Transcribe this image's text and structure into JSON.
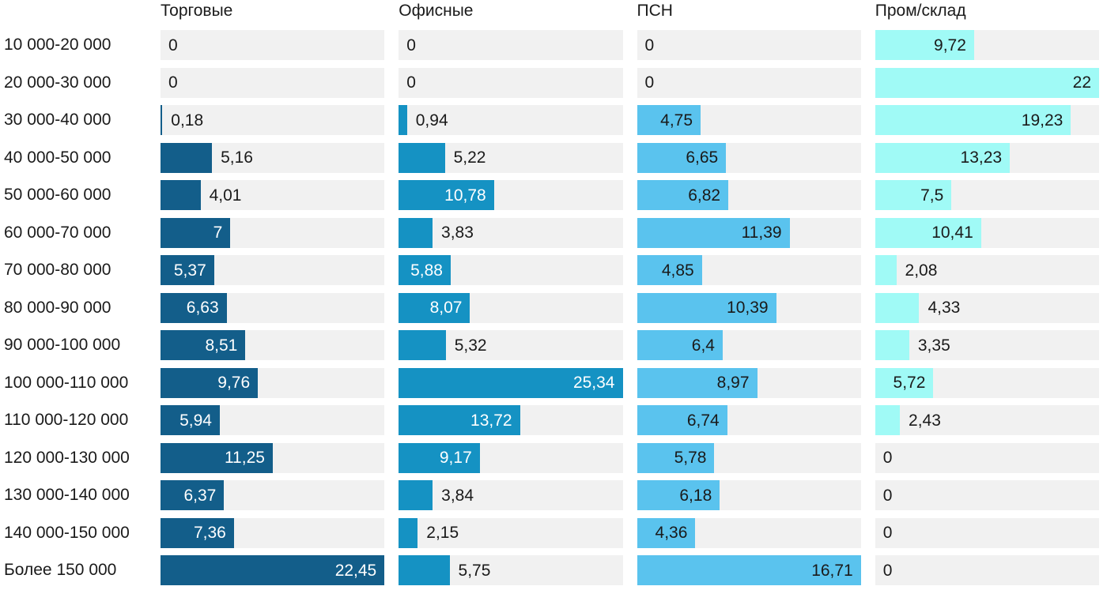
{
  "chart_data": {
    "type": "bar",
    "orientation": "horizontal",
    "grid": false,
    "legend_position": "column-headers",
    "track_color": "#f1f1f1",
    "text_color": "#1a1a1a",
    "value_format": "decimal-comma",
    "categories": [
      "10 000-20 000",
      "20 000-30 000",
      "30 000-40 000",
      "40 000-50 000",
      "50 000-60 000",
      "60 000-70 000",
      "70 000-80 000",
      "80 000-90 000",
      "90 000-100 000",
      "100 000-110 000",
      "110 000-120 000",
      "120 000-130 000",
      "130 000-140 000",
      "140 000-150 000",
      "Более 150 000"
    ],
    "series": [
      {
        "name": "Торговые",
        "color": "#135e8a",
        "value_color_inside": "#ffffff",
        "scale_max": 22.45,
        "values": [
          0,
          0,
          0.18,
          5.16,
          4.01,
          7,
          5.37,
          6.63,
          8.51,
          9.76,
          5.94,
          11.25,
          6.37,
          7.36,
          22.45
        ],
        "label_inside": [
          false,
          false,
          false,
          false,
          false,
          true,
          true,
          true,
          true,
          true,
          true,
          true,
          true,
          true,
          true
        ]
      },
      {
        "name": "Офисные",
        "color": "#1592c3",
        "value_color_inside": "#ffffff",
        "scale_max": 25.34,
        "values": [
          0,
          0,
          0.94,
          5.22,
          10.78,
          3.83,
          5.88,
          8.07,
          5.32,
          25.34,
          13.72,
          9.17,
          3.84,
          2.15,
          5.75
        ],
        "label_inside": [
          false,
          false,
          false,
          false,
          true,
          false,
          true,
          true,
          false,
          true,
          true,
          true,
          false,
          false,
          false
        ]
      },
      {
        "name": "ПСН",
        "color": "#5ac3ee",
        "value_color_inside": "#1a1a1a",
        "scale_max": 16.71,
        "values": [
          0,
          0,
          4.75,
          6.65,
          6.82,
          11.39,
          4.85,
          10.39,
          6.4,
          8.97,
          6.74,
          5.78,
          6.18,
          4.36,
          16.71
        ],
        "label_inside": [
          false,
          false,
          true,
          true,
          true,
          true,
          true,
          true,
          true,
          true,
          true,
          true,
          true,
          true,
          true
        ]
      },
      {
        "name": "Пром/склад",
        "color": "#a0faf6",
        "value_color_inside": "#1a1a1a",
        "scale_max": 22,
        "values": [
          9.72,
          22,
          19.23,
          13.23,
          7.5,
          10.41,
          2.08,
          4.33,
          3.35,
          5.72,
          2.43,
          0,
          0,
          0,
          0
        ],
        "label_inside": [
          true,
          true,
          true,
          true,
          true,
          true,
          false,
          false,
          false,
          true,
          false,
          false,
          false,
          false,
          false
        ]
      }
    ]
  }
}
